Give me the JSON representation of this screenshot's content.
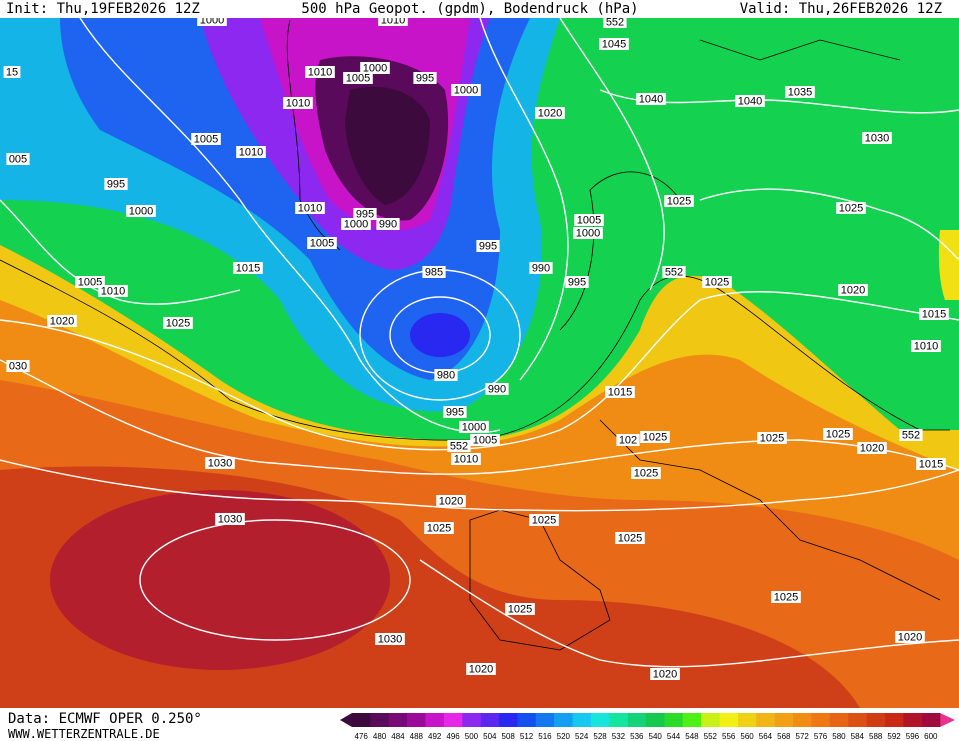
{
  "header": {
    "init": "Init: Thu,19FEB2026 12Z",
    "title": "500 hPa Geopot. (gpdm), Bodendruck (hPa)",
    "valid": "Valid: Thu,26FEB2026 12Z"
  },
  "map": {
    "pressure_labels": [
      "1000",
      "1010",
      "552",
      "1045",
      "15",
      "1010",
      "1000",
      "1005",
      "995",
      "1000",
      "1040",
      "1040",
      "1035",
      "1010",
      "1020",
      "1005",
      "1030",
      "005",
      "1010",
      "995",
      "1025",
      "1025",
      "1010",
      "1000",
      "995",
      "1000",
      "990",
      "1005",
      "1000",
      "1005",
      "995",
      "1015",
      "985",
      "990",
      "552",
      "1025",
      "995",
      "1005",
      "1010",
      "1020",
      "1015",
      "1020",
      "1025",
      "1010",
      "030",
      "980",
      "990",
      "1015",
      "995",
      "1000",
      "1025",
      "1025",
      "1025",
      "102",
      "1005",
      "552",
      "1020",
      "552",
      "1010",
      "1015",
      "1030",
      "1025",
      "1020",
      "1025",
      "1030",
      "1025",
      "1025",
      "1030",
      "1025",
      "1025",
      "1020",
      "1020",
      "1020"
    ]
  },
  "footer": {
    "source": "Data: ECMWF OPER 0.250°",
    "site": "WWW.WETTERZENTRALE.DE"
  },
  "colorbar": {
    "values": [
      476,
      480,
      484,
      488,
      492,
      496,
      500,
      504,
      508,
      512,
      516,
      520,
      524,
      528,
      532,
      536,
      540,
      544,
      548,
      552,
      556,
      560,
      564,
      568,
      572,
      576,
      580,
      584,
      588,
      592,
      596,
      600
    ],
    "colors": [
      "#3c0a3c",
      "#5a0a5a",
      "#780a78",
      "#9b0a9b",
      "#c814c8",
      "#e628e6",
      "#8c28f0",
      "#5a28f0",
      "#2828f0",
      "#1450f0",
      "#1478f0",
      "#14a0f0",
      "#14c8f0",
      "#14e6dc",
      "#14e6a0",
      "#14d278",
      "#14c850",
      "#28dc28",
      "#50f014",
      "#c8f014",
      "#f0f014",
      "#f0d214",
      "#f0b414",
      "#f0a014",
      "#f08c14",
      "#f07814",
      "#e66414",
      "#dc5014",
      "#d23c14",
      "#c82814",
      "#b41428",
      "#a00a3c"
    ]
  }
}
